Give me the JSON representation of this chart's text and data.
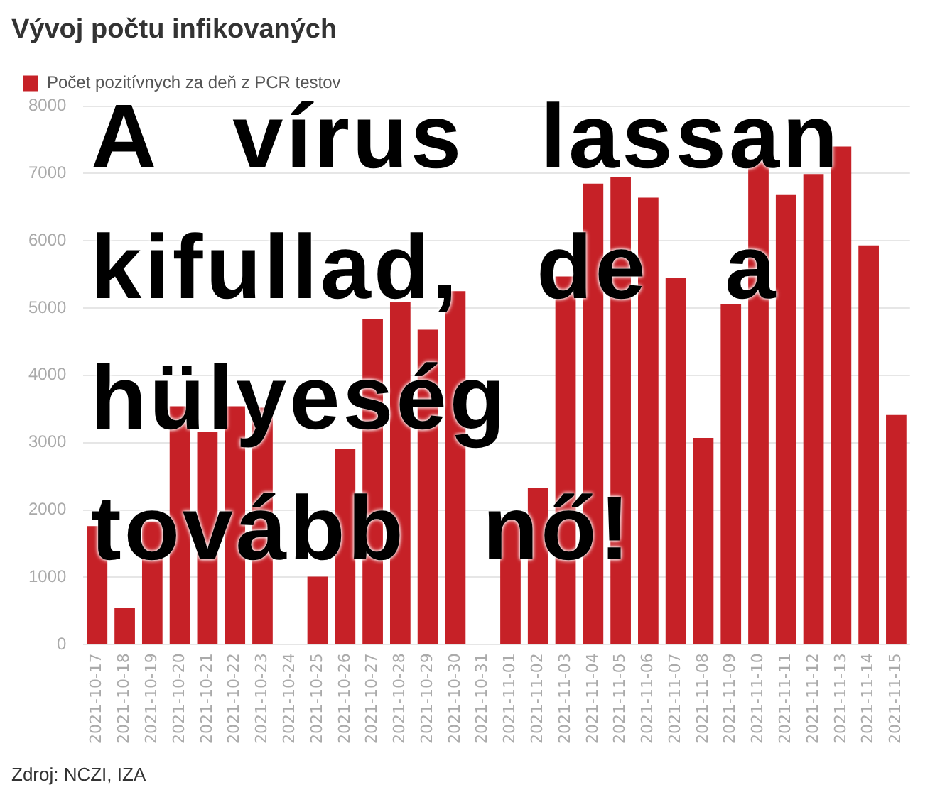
{
  "chart_data": {
    "type": "bar",
    "title": "Vývoj počtu infikovaných",
    "categories": [
      "2021-10-17",
      "2021-10-18",
      "2021-10-19",
      "2021-10-20",
      "2021-10-21",
      "2021-10-22",
      "2021-10-23",
      "2021-10-24",
      "2021-10-25",
      "2021-10-26",
      "2021-10-27",
      "2021-10-28",
      "2021-10-29",
      "2021-10-30",
      "2021-10-31",
      "2021-11-01",
      "2021-11-02",
      "2021-11-03",
      "2021-11-04",
      "2021-11-05",
      "2021-11-06",
      "2021-11-07",
      "2021-11-08",
      "2021-11-09",
      "2021-11-10",
      "2021-11-11",
      "2021-11-12",
      "2021-11-13",
      "2021-11-14",
      "2021-11-15"
    ],
    "series": [
      {
        "name": "Počet pozitívnych za deň z PCR testov",
        "color": "#c62127",
        "values": [
          1760,
          550,
          1830,
          3540,
          3160,
          3540,
          3520,
          null,
          1010,
          2910,
          4840,
          5090,
          4680,
          5250,
          null,
          1890,
          2330,
          5470,
          6850,
          6940,
          6640,
          5450,
          3070,
          5060,
          7210,
          6680,
          6990,
          7400,
          5930,
          3410
        ]
      }
    ],
    "ylim": [
      0,
      8000
    ],
    "yticks": [
      0,
      1000,
      2000,
      3000,
      4000,
      5000,
      6000,
      7000,
      8000
    ],
    "grid": "y",
    "legend": "top left",
    "annotations": [
      "A vírus lassan kifullad, de a hülyeség tovább nő!",
      "Zdroj: NCZI, IZA"
    ]
  }
}
